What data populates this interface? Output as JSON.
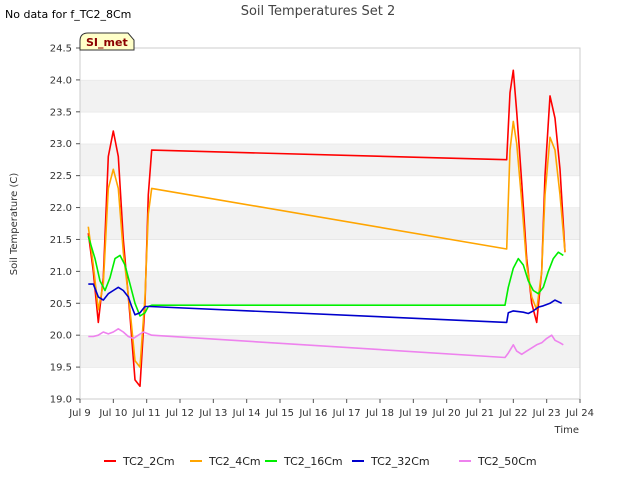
{
  "header": {
    "nodata": "No data for f_TC2_8Cm"
  },
  "badge": {
    "label": "SI_met"
  },
  "chart_data": {
    "type": "line",
    "title": "Soil Temperatures Set 2",
    "xlabel": "Time",
    "ylabel": "Soil Temperature (C)",
    "xlim": [
      9,
      24
    ],
    "ylim": [
      19.0,
      24.5
    ],
    "xticks": [
      9,
      10,
      11,
      12,
      13,
      14,
      15,
      16,
      17,
      18,
      19,
      20,
      21,
      22,
      23,
      24
    ],
    "xtick_labels": [
      "Jul 9",
      "Jul 10",
      "Jul 11",
      "Jul 12",
      "Jul 13",
      "Jul 14",
      "Jul 15",
      "Jul 16",
      "Jul 17",
      "Jul 18",
      "Jul 19",
      "Jul 20",
      "Jul 21",
      "Jul 22",
      "Jul 23",
      "Jul 24"
    ],
    "yticks": [
      19.0,
      19.5,
      20.0,
      20.5,
      21.0,
      21.5,
      22.0,
      22.5,
      23.0,
      23.5,
      24.0,
      24.5
    ],
    "ytick_labels": [
      "19.0",
      "19.5",
      "20.0",
      "20.5",
      "21.0",
      "21.5",
      "22.0",
      "22.5",
      "23.0",
      "23.5",
      "24.0",
      "24.5"
    ],
    "grid": true,
    "legend_position": "bottom",
    "series": [
      {
        "name": "TC2_2Cm",
        "color": "#ff0000",
        "x": [
          9.25,
          9.4,
          9.55,
          9.7,
          9.85,
          10.0,
          10.15,
          10.3,
          10.5,
          10.65,
          10.8,
          10.95,
          11.05,
          11.15,
          21.8,
          21.9,
          22.0,
          22.1,
          22.25,
          22.4,
          22.55,
          22.7,
          22.85,
          22.95,
          23.1,
          23.25,
          23.4,
          23.55
        ],
        "y": [
          21.6,
          21.0,
          20.2,
          20.9,
          22.8,
          23.2,
          22.8,
          21.5,
          20.3,
          19.3,
          19.2,
          20.5,
          22.2,
          22.9,
          22.75,
          23.8,
          24.15,
          23.5,
          22.4,
          21.2,
          20.5,
          20.2,
          21.0,
          22.5,
          23.75,
          23.4,
          22.6,
          21.3
        ]
      },
      {
        "name": "TC2_4Cm",
        "color": "#ffa500",
        "x": [
          9.25,
          9.4,
          9.55,
          9.7,
          9.85,
          10.0,
          10.15,
          10.3,
          10.5,
          10.65,
          10.8,
          10.95,
          11.05,
          11.15,
          21.8,
          21.9,
          22.0,
          22.1,
          22.25,
          22.4,
          22.55,
          22.7,
          22.85,
          22.95,
          23.1,
          23.25,
          23.4,
          23.55
        ],
        "y": [
          21.7,
          21.1,
          20.4,
          20.8,
          22.3,
          22.6,
          22.3,
          21.3,
          20.4,
          19.6,
          19.5,
          20.6,
          21.9,
          22.3,
          21.35,
          22.9,
          23.35,
          23.0,
          22.1,
          21.1,
          20.6,
          20.4,
          21.0,
          22.2,
          23.1,
          22.9,
          22.2,
          21.3
        ]
      },
      {
        "name": "TC2_16Cm",
        "color": "#00ee00",
        "x": [
          9.25,
          9.45,
          9.6,
          9.75,
          9.9,
          10.05,
          10.2,
          10.35,
          10.5,
          10.65,
          10.8,
          10.95,
          11.05,
          11.15,
          21.75,
          21.85,
          22.0,
          22.15,
          22.3,
          22.45,
          22.6,
          22.75,
          22.9,
          23.05,
          23.2,
          23.35,
          23.5
        ],
        "y": [
          21.55,
          21.2,
          20.85,
          20.7,
          20.9,
          21.2,
          21.25,
          21.1,
          20.8,
          20.5,
          20.3,
          20.35,
          20.45,
          20.47,
          20.47,
          20.75,
          21.05,
          21.2,
          21.1,
          20.85,
          20.7,
          20.65,
          20.75,
          21.0,
          21.2,
          21.3,
          21.25
        ]
      },
      {
        "name": "TC2_32Cm",
        "color": "#0000cc",
        "x": [
          9.25,
          9.4,
          9.55,
          9.7,
          9.85,
          10.0,
          10.15,
          10.3,
          10.45,
          10.55,
          10.65,
          10.8,
          10.95,
          11.1,
          21.8,
          21.85,
          22.0,
          22.15,
          22.3,
          22.45,
          22.6,
          22.75,
          22.9,
          23.0,
          23.1,
          23.25,
          23.45
        ],
        "y": [
          20.8,
          20.8,
          20.6,
          20.55,
          20.65,
          20.7,
          20.75,
          20.7,
          20.6,
          20.45,
          20.32,
          20.35,
          20.45,
          20.45,
          20.2,
          20.35,
          20.38,
          20.37,
          20.36,
          20.34,
          20.38,
          20.44,
          20.46,
          20.48,
          20.5,
          20.55,
          20.5
        ]
      },
      {
        "name": "TC2_50Cm",
        "color": "#ee82ee",
        "x": [
          9.25,
          9.4,
          9.55,
          9.7,
          9.85,
          10.0,
          10.15,
          10.3,
          10.45,
          10.6,
          10.75,
          10.9,
          11.05,
          11.15,
          21.75,
          21.85,
          22.0,
          22.1,
          22.25,
          22.4,
          22.55,
          22.7,
          22.85,
          23.0,
          23.15,
          23.25,
          23.4,
          23.5
        ],
        "y": [
          19.98,
          19.98,
          20.0,
          20.05,
          20.02,
          20.05,
          20.1,
          20.05,
          19.98,
          19.95,
          20.0,
          20.05,
          20.02,
          20.0,
          19.65,
          19.72,
          19.85,
          19.75,
          19.7,
          19.75,
          19.8,
          19.85,
          19.88,
          19.95,
          20.0,
          19.92,
          19.88,
          19.85
        ]
      }
    ]
  }
}
